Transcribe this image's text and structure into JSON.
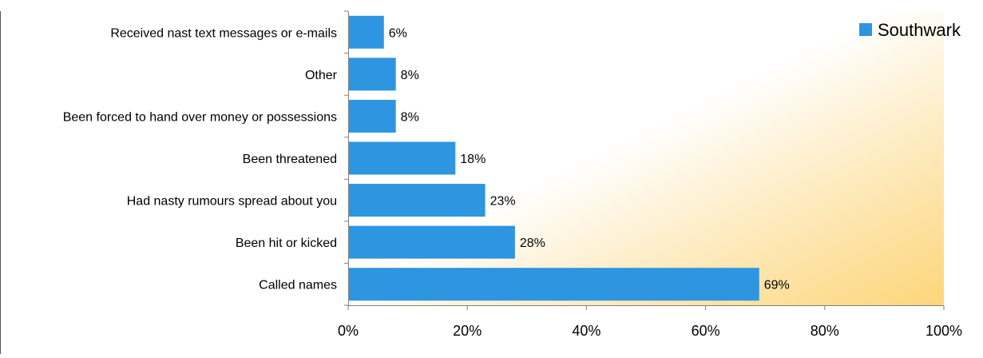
{
  "chart_data": {
    "type": "bar",
    "orientation": "horizontal",
    "categories": [
      "Received nast text messages or e-mails",
      "Other",
      "Been forced to hand over money or possessions",
      "Been threatened",
      "Had nasty rumours spread about you",
      "Been hit or kicked",
      "Called names"
    ],
    "series": [
      {
        "name": "Southwark",
        "values": [
          6,
          8,
          8,
          18,
          23,
          28,
          69
        ],
        "labels": [
          "6%",
          "8%",
          "8%",
          "18%",
          "23%",
          "28%",
          "69%"
        ],
        "color": "#2e95e0"
      }
    ],
    "xlim": [
      0,
      100
    ],
    "xticks": [
      0,
      20,
      40,
      60,
      80,
      100
    ],
    "xtick_labels": [
      "0%",
      "20%",
      "40%",
      "60%",
      "80%",
      "100%"
    ],
    "title": "",
    "xlabel": "",
    "ylabel": "",
    "grid": false,
    "legend_position": "top-right",
    "background_gradient": [
      "#ffffff",
      "#fde7b4",
      "#fdd67a"
    ]
  }
}
